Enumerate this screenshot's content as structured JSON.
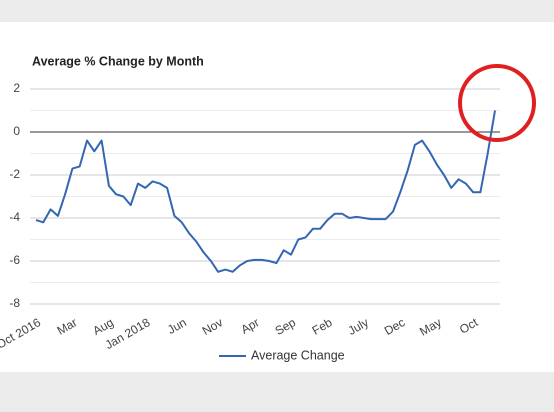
{
  "chart_data": {
    "type": "line",
    "title": "Average % Change by Month",
    "categories": [
      "Oct 2016",
      null,
      null,
      null,
      null,
      "Mar",
      null,
      null,
      null,
      null,
      "Aug",
      null,
      null,
      null,
      null,
      "Jan 2018",
      null,
      null,
      null,
      null,
      "Jun",
      null,
      null,
      null,
      null,
      "Nov",
      null,
      null,
      null,
      null,
      "Apr",
      null,
      null,
      null,
      null,
      "Sep",
      null,
      null,
      null,
      null,
      "Feb",
      null,
      null,
      null,
      null,
      "July",
      null,
      null,
      null,
      null,
      "Dec",
      null,
      null,
      null,
      null,
      "May",
      null,
      null,
      null,
      null,
      "Oct",
      null,
      null,
      null
    ],
    "series": [
      {
        "name": "Average Change",
        "color": "#3366b3",
        "values": [
          -4.1,
          -4.2,
          -3.6,
          -3.9,
          -2.9,
          -1.7,
          -1.6,
          -0.4,
          -0.9,
          -0.4,
          -2.5,
          -2.9,
          -3.0,
          -3.4,
          -2.4,
          -2.6,
          -2.3,
          -2.4,
          -2.6,
          -3.9,
          -4.2,
          -4.7,
          -5.1,
          -5.6,
          -6.0,
          -6.5,
          -6.4,
          -6.5,
          -6.2,
          -6.0,
          -5.95,
          -5.95,
          -6.0,
          -6.1,
          -5.5,
          -5.7,
          -5.0,
          -4.9,
          -4.5,
          -4.5,
          -4.1,
          -3.8,
          -3.8,
          -4.0,
          -3.95,
          -4.0,
          -4.05,
          -4.05,
          -4.05,
          -3.7,
          -2.8,
          -1.8,
          -0.6,
          -0.4,
          -0.9,
          -1.5,
          -2.0,
          -2.6,
          -2.2,
          -2.4,
          -2.8,
          -2.8,
          -1.0,
          1.0
        ]
      }
    ],
    "ylim": [
      -8,
      2
    ],
    "yticks": [
      -8,
      -6,
      -4,
      -2,
      0,
      2
    ],
    "grid": true,
    "legend": "bottom"
  }
}
